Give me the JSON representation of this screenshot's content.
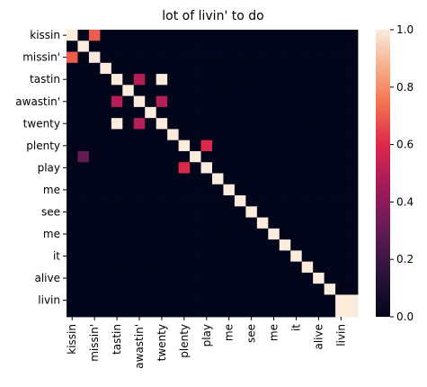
{
  "chart_data": {
    "type": "heatmap",
    "title": "lot of livin' to do",
    "labels": [
      "kissin",
      "",
      "missin'",
      "",
      "tastin",
      "",
      "awastin'",
      "",
      "twenty",
      "",
      "plenty",
      "",
      "play",
      "",
      "me",
      "",
      "see",
      "",
      "me",
      "",
      "it",
      "",
      "alive",
      "",
      "livin",
      ""
    ],
    "x_tick_labels": [
      "kissin",
      "missin'",
      "tastin",
      "awastin'",
      "twenty",
      "plenty",
      "play",
      "me",
      "see",
      "me",
      "it",
      "alive",
      "livin"
    ],
    "y_tick_labels": [
      "kissin",
      "missin'",
      "tastin",
      "awastin'",
      "twenty",
      "plenty",
      "play",
      "me",
      "see",
      "me",
      "it",
      "alive",
      "livin"
    ],
    "colorbar": {
      "min": 0.0,
      "max": 1.0,
      "ticks": [
        "0.0",
        "0.2",
        "0.4",
        "0.6",
        "0.8",
        "1.0"
      ]
    },
    "matrix": [
      [
        1,
        0,
        0.7,
        0,
        0,
        0,
        0,
        0,
        0,
        0,
        0,
        0,
        0,
        0,
        0,
        0,
        0,
        0,
        0,
        0,
        0,
        0,
        0,
        0,
        0,
        0
      ],
      [
        0,
        1,
        0,
        0,
        0,
        0,
        0,
        0,
        0,
        0,
        0,
        0,
        0,
        0,
        0,
        0,
        0,
        0,
        0,
        0,
        0,
        0,
        0,
        0,
        0,
        0
      ],
      [
        0.7,
        0,
        1,
        0,
        0,
        0,
        0,
        0,
        0,
        0,
        0,
        0,
        0,
        0,
        0,
        0,
        0,
        0,
        0,
        0,
        0,
        0,
        0,
        0,
        0,
        0
      ],
      [
        0,
        0,
        0,
        1,
        0,
        0,
        0,
        0,
        0,
        0,
        0,
        0,
        0,
        0,
        0,
        0,
        0,
        0,
        0,
        0,
        0,
        0,
        0,
        0,
        0,
        0
      ],
      [
        0,
        0,
        0,
        0,
        1,
        0,
        0.5,
        0,
        1,
        0,
        0,
        0,
        0,
        0,
        0,
        0,
        0,
        0,
        0,
        0,
        0,
        0,
        0,
        0,
        0,
        0
      ],
      [
        0,
        0,
        0,
        0,
        0,
        1,
        0,
        0,
        0,
        0,
        0,
        0,
        0,
        0,
        0,
        0,
        0,
        0,
        0,
        0,
        0,
        0,
        0,
        0,
        0,
        0
      ],
      [
        0,
        0,
        0,
        0,
        0.5,
        0,
        1,
        0,
        0.5,
        0,
        0,
        0,
        0,
        0,
        0,
        0,
        0,
        0,
        0,
        0,
        0,
        0,
        0,
        0,
        0,
        0
      ],
      [
        0,
        0,
        0,
        0,
        0,
        0,
        0,
        1,
        0,
        0,
        0,
        0,
        0,
        0,
        0,
        0,
        0,
        0,
        0,
        0,
        0,
        0,
        0,
        0,
        0,
        0
      ],
      [
        0,
        0,
        0,
        0,
        1,
        0,
        0.5,
        0,
        1,
        0,
        0,
        0,
        0,
        0,
        0,
        0,
        0,
        0,
        0,
        0,
        0,
        0,
        0,
        0,
        0,
        0
      ],
      [
        0,
        0,
        0,
        0,
        0,
        0,
        0,
        0,
        0,
        1,
        0,
        0,
        0,
        0,
        0,
        0,
        0,
        0,
        0,
        0,
        0,
        0,
        0,
        0,
        0,
        0
      ],
      [
        0,
        0,
        0,
        0,
        0,
        0,
        0,
        0,
        0,
        0,
        1,
        0,
        0.6,
        0,
        0,
        0,
        0,
        0,
        0,
        0,
        0,
        0,
        0,
        0,
        0,
        0
      ],
      [
        0,
        0.3,
        0,
        0,
        0,
        0,
        0,
        0,
        0,
        0,
        0,
        1,
        0,
        0,
        0,
        0,
        0,
        0,
        0,
        0,
        0,
        0,
        0,
        0,
        0,
        0
      ],
      [
        0,
        0,
        0,
        0,
        0,
        0,
        0,
        0,
        0,
        0,
        0.6,
        0,
        1,
        0,
        0,
        0,
        0,
        0,
        0,
        0,
        0,
        0,
        0,
        0,
        0,
        0
      ],
      [
        0,
        0,
        0,
        0,
        0,
        0,
        0,
        0,
        0,
        0,
        0,
        0,
        0,
        1,
        0,
        0,
        0,
        0,
        0,
        0,
        0,
        0,
        0,
        0,
        0,
        0
      ],
      [
        0,
        0,
        0,
        0,
        0,
        0,
        0,
        0,
        0,
        0,
        0,
        0,
        0,
        0,
        1,
        0,
        0,
        0,
        0,
        0,
        0,
        0,
        0,
        0,
        0,
        0
      ],
      [
        0,
        0,
        0,
        0,
        0,
        0,
        0,
        0,
        0,
        0,
        0,
        0,
        0,
        0,
        0,
        1,
        0,
        0,
        0,
        0,
        0,
        0,
        0,
        0,
        0,
        0
      ],
      [
        0,
        0,
        0,
        0,
        0,
        0,
        0,
        0,
        0,
        0,
        0,
        0,
        0,
        0,
        0,
        0,
        1,
        0,
        0,
        0,
        0,
        0,
        0,
        0,
        0,
        0
      ],
      [
        0,
        0,
        0,
        0,
        0,
        0,
        0,
        0,
        0,
        0,
        0,
        0,
        0,
        0,
        0,
        0,
        0,
        1,
        0,
        0,
        0,
        0,
        0,
        0,
        0,
        0
      ],
      [
        0,
        0,
        0,
        0,
        0,
        0,
        0,
        0,
        0,
        0,
        0,
        0,
        0,
        0,
        0,
        0,
        0,
        0,
        1,
        0,
        0,
        0,
        0,
        0,
        0,
        0
      ],
      [
        0,
        0,
        0,
        0,
        0,
        0,
        0,
        0,
        0,
        0,
        0,
        0,
        0,
        0,
        0,
        0,
        0,
        0,
        0,
        1,
        0,
        0,
        0,
        0,
        0,
        0
      ],
      [
        0,
        0,
        0,
        0,
        0,
        0,
        0,
        0,
        0,
        0,
        0,
        0,
        0,
        0,
        0,
        0,
        0,
        0,
        0,
        0,
        1,
        0,
        0,
        0,
        0,
        0
      ],
      [
        0,
        0,
        0,
        0,
        0,
        0,
        0,
        0,
        0,
        0,
        0,
        0,
        0,
        0,
        0,
        0,
        0,
        0,
        0,
        0,
        0,
        1,
        0,
        0,
        0,
        0
      ],
      [
        0,
        0,
        0,
        0,
        0,
        0,
        0,
        0,
        0,
        0,
        0,
        0,
        0,
        0,
        0,
        0,
        0,
        0,
        0,
        0,
        0,
        0,
        1,
        0,
        0,
        0
      ],
      [
        0,
        0,
        0,
        0,
        0,
        0,
        0,
        0,
        0,
        0,
        0,
        0,
        0,
        0,
        0,
        0,
        0,
        0,
        0,
        0,
        0,
        0,
        0,
        1,
        0,
        0
      ],
      [
        0,
        0,
        0,
        0,
        0,
        0,
        0,
        0,
        0,
        0,
        0,
        0,
        0,
        0,
        0,
        0,
        0,
        0,
        0,
        0,
        0,
        0,
        0,
        0,
        1,
        1
      ],
      [
        0,
        0,
        0,
        0,
        0,
        0,
        0,
        0,
        0,
        0,
        0,
        0,
        0,
        0,
        0,
        0,
        0,
        0,
        0,
        0,
        0,
        0,
        0,
        0,
        1,
        1
      ]
    ]
  }
}
